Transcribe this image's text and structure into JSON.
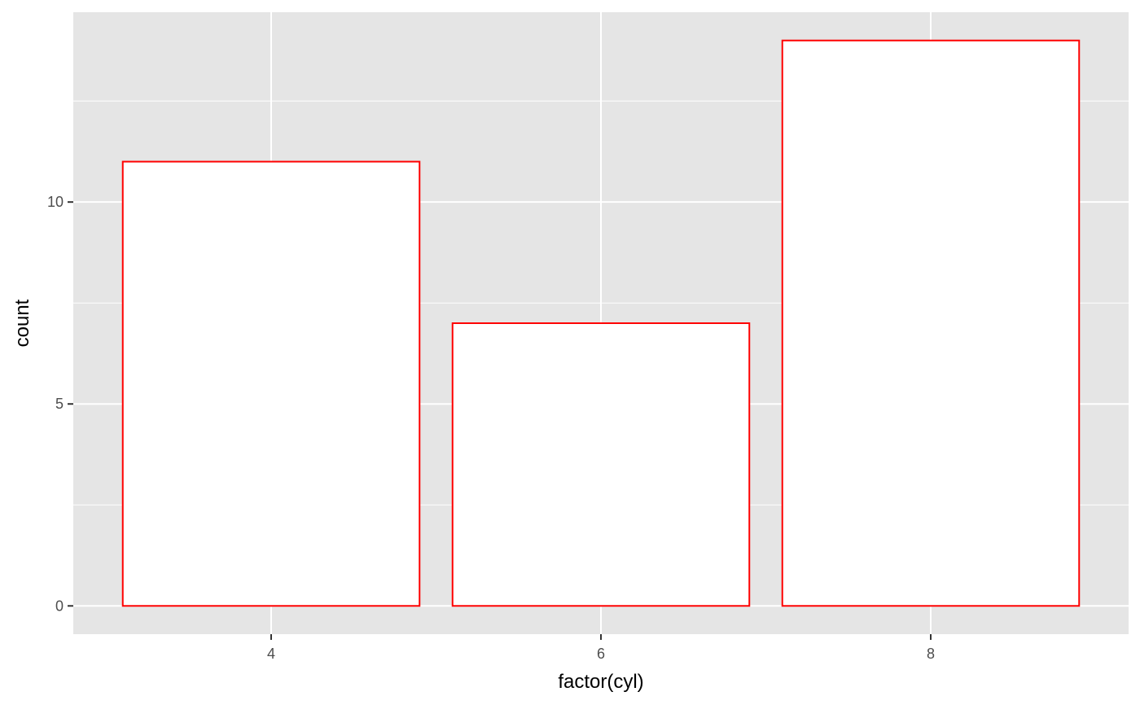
{
  "chart_data": {
    "type": "bar",
    "categories": [
      "4",
      "6",
      "8"
    ],
    "values": [
      11,
      7,
      14
    ],
    "xlabel": "factor(cyl)",
    "ylabel": "count",
    "ylim": [
      -0.7,
      14.7
    ],
    "y_ticks": [
      0,
      5,
      10
    ],
    "y_tick_labels": [
      "0",
      "5",
      "10"
    ],
    "y_minor_ticks": [
      2.5,
      7.5,
      12.5
    ],
    "grid": true,
    "colors": {
      "panel_background": "#e5e5e5",
      "grid": "#ffffff",
      "bar_fill": "#ffffff",
      "bar_outline": "#ff0000",
      "tick_mark": "#333333",
      "tick_label": "#4d4d4d",
      "axis_title": "#000000"
    }
  }
}
